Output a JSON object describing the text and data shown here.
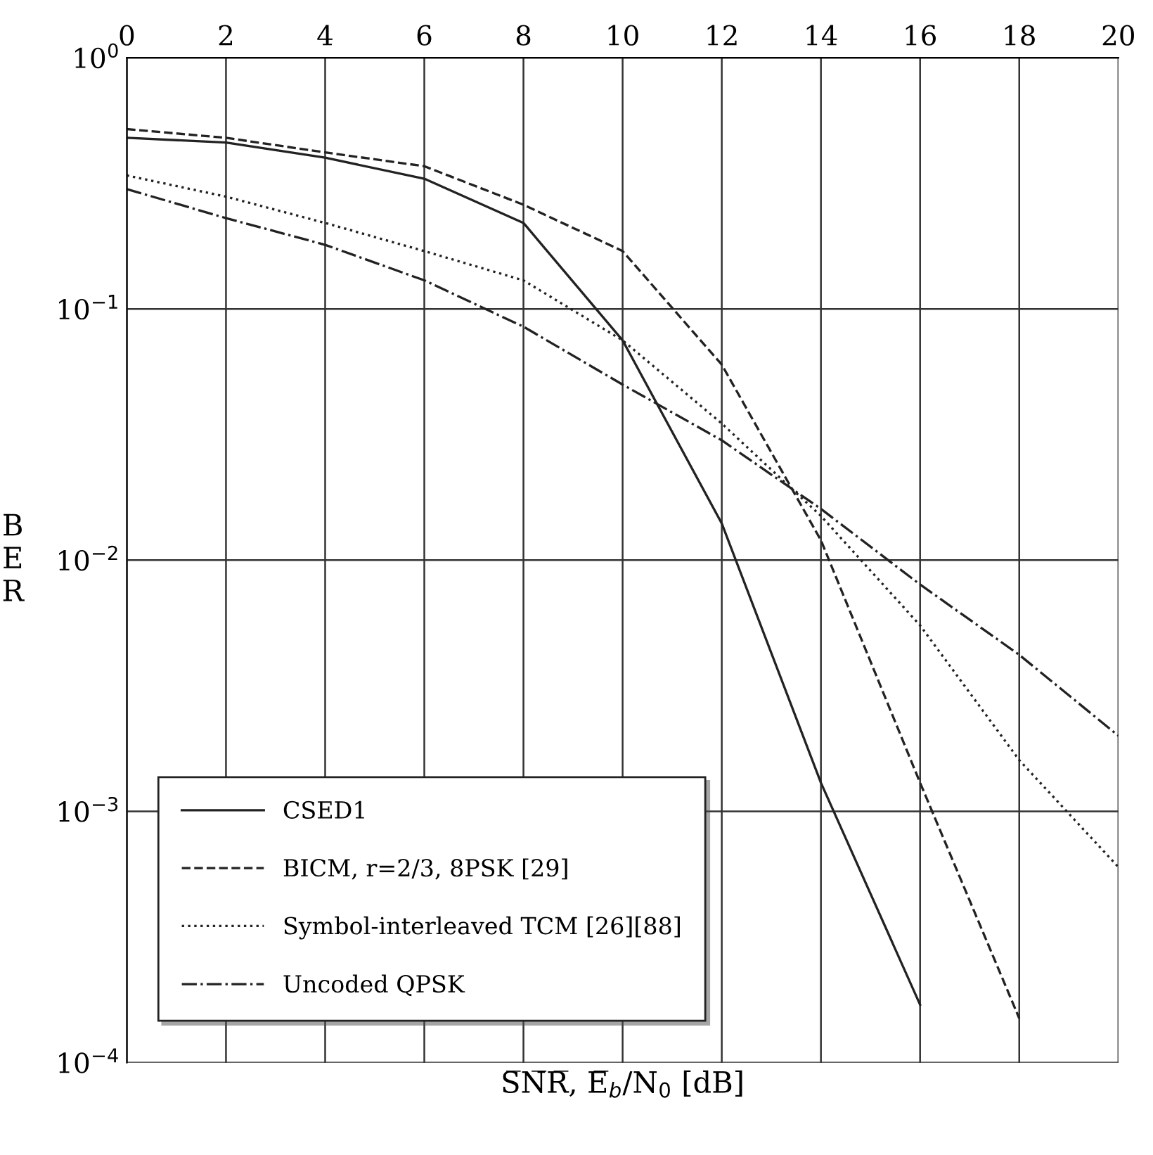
{
  "chart_data": {
    "type": "line",
    "xlabel": "S̅N̅R̅, E̅$_{b}$/N$_{0}$ [dB]",
    "ylabel": "B\nE\nR",
    "log": "y",
    "xlim": [
      0,
      20
    ],
    "xticks": [
      0,
      2,
      4,
      6,
      8,
      10,
      12,
      14,
      16,
      18,
      20
    ],
    "ylim": [
      0.0001,
      1
    ],
    "yticks": [
      {
        "value": 0.0001,
        "label": "10$^{−4}$"
      },
      {
        "value": 0.001,
        "label": "10$^{−3}$"
      },
      {
        "value": 0.01,
        "label": "10$^{−2}$"
      },
      {
        "value": 0.1,
        "label": "10$^{−1}$"
      },
      {
        "value": 1,
        "label": "10$^{0}$"
      }
    ],
    "grid": true,
    "legend": "bottom left",
    "marker": "none",
    "series": [
      {
        "name": "CSED1",
        "color": "#222222",
        "line_style": "solid",
        "x": [
          0,
          2,
          4,
          6,
          8,
          10,
          12,
          14,
          16
        ],
        "values": [
          0.48,
          0.46,
          0.4,
          0.33,
          0.22,
          0.075,
          0.014,
          0.0013,
          0.00017
        ]
      },
      {
        "name": "BICM, r=2/3, 8PSK [29]",
        "color": "#222222",
        "line_style": "dashed",
        "x": [
          0,
          2,
          4,
          6,
          8,
          10,
          12,
          14,
          16,
          18
        ],
        "values": [
          0.52,
          0.48,
          0.42,
          0.37,
          0.26,
          0.17,
          0.06,
          0.012,
          0.0013,
          0.00015
        ]
      },
      {
        "name": "Symbol-interleaved TCM [26][88]",
        "color": "#222222",
        "line_style": "dotted",
        "x": [
          0,
          2,
          4,
          6,
          8,
          10,
          12,
          14,
          16,
          18,
          20
        ],
        "values": [
          0.34,
          0.28,
          0.22,
          0.17,
          0.13,
          0.075,
          0.035,
          0.015,
          0.0055,
          0.0016,
          0.0006
        ]
      },
      {
        "name": "Uncoded QPSK",
        "color": "#222222",
        "line_style": "dashdot",
        "x": [
          0,
          2,
          4,
          6,
          8,
          10,
          12,
          14,
          16,
          18,
          20
        ],
        "values": [
          0.3,
          0.23,
          0.18,
          0.13,
          0.085,
          0.05,
          0.03,
          0.016,
          0.008,
          0.0042,
          0.002
        ]
      }
    ]
  }
}
